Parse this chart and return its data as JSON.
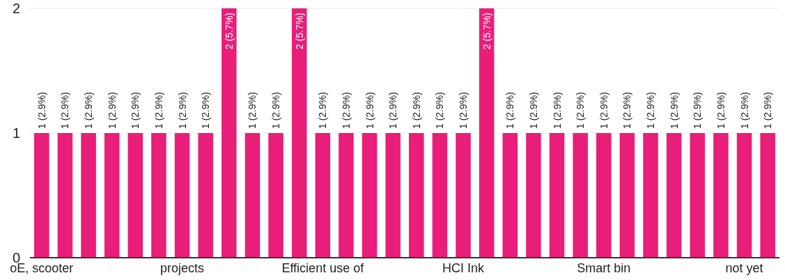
{
  "chart_data": {
    "type": "bar",
    "categories": [
      "oE, scooter",
      null,
      null,
      null,
      null,
      null,
      "projects",
      null,
      null,
      null,
      null,
      null,
      "Efficient use of",
      null,
      null,
      null,
      null,
      null,
      "HCI Ink",
      null,
      null,
      null,
      null,
      null,
      "Smart bin",
      null,
      null,
      null,
      null,
      null,
      "not yet",
      null
    ],
    "values": [
      1,
      1,
      1,
      1,
      1,
      1,
      1,
      1,
      2,
      1,
      1,
      2,
      1,
      1,
      1,
      1,
      1,
      1,
      1,
      2,
      1,
      1,
      1,
      1,
      1,
      1,
      1,
      1,
      1,
      1,
      1,
      1
    ],
    "value_labels": [
      "1 (2.9%)",
      "1 (2.9%)",
      "1 (2.9%)",
      "1 (2.9%)",
      "1 (2.9%)",
      "1 (2.9%)",
      "1 (2.9%)",
      "1 (2.9%)",
      "2 (5.7%)",
      "1 (2.9%)",
      "1 (2.9%)",
      "2 (5.7%)",
      "1 (2.9%)",
      "1 (2.9%)",
      "1 (2.9%)",
      "1 (2.9%)",
      "1 (2.9%)",
      "1 (2.9%)",
      "1 (2.9%)",
      "2 (5.7%)",
      "1 (2.9%)",
      "1 (2.9%)",
      "1 (2.9%)",
      "1 (2.9%)",
      "1 (2.9%)",
      "1 (2.9%)",
      "1 (2.9%)",
      "1 (2.9%)",
      "1 (2.9%)",
      "1 (2.9%)",
      "1 (2.9%)",
      "1 (2.9%)"
    ],
    "color": "#e91e78",
    "ylim": [
      0,
      2
    ],
    "yticks": [
      0,
      1,
      2
    ],
    "grid": true
  }
}
